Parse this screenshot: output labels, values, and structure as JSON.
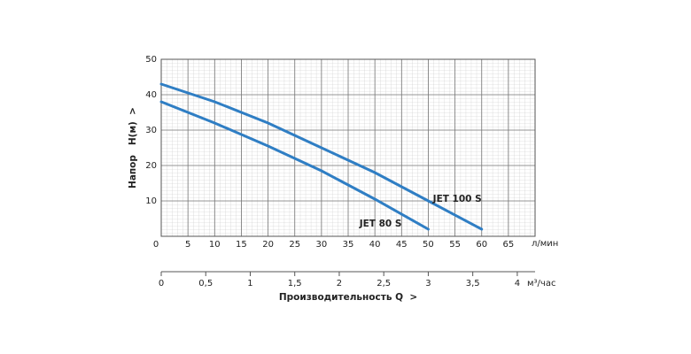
{
  "chart_data": {
    "type": "line",
    "y_label": "Напор   H(м)  >",
    "x_unit": "л/мин",
    "x2_unit": "м³/час",
    "x2_label": "Производительность Q  >",
    "xlim": [
      0,
      70
    ],
    "xticks": [
      0,
      5,
      10,
      15,
      20,
      25,
      30,
      35,
      40,
      45,
      50,
      55,
      60,
      65
    ],
    "ylim": [
      0,
      50
    ],
    "yticks": [
      10,
      20,
      30,
      40,
      50
    ],
    "x2lim": [
      0,
      4.2
    ],
    "x2ticks": [
      0,
      {
        "value": 0.5,
        "label": "0,5"
      },
      1,
      {
        "value": 1.5,
        "label": "1,5"
      },
      2,
      {
        "value": 2.5,
        "label": "2,5"
      },
      3,
      {
        "value": 3.5,
        "label": "3,5"
      },
      4
    ],
    "grid": true,
    "series": [
      {
        "name": "JET 100 S",
        "color": "#2f7ec4",
        "x": [
          0,
          10,
          20,
          30,
          40,
          50,
          60
        ],
        "values": [
          43,
          38,
          32,
          25,
          18,
          10,
          2
        ]
      },
      {
        "name": "JET 80 S",
        "color": "#2f7ec4",
        "x": [
          0,
          10,
          20,
          30,
          40,
          50
        ],
        "values": [
          38,
          32,
          25.5,
          18.5,
          10.5,
          2
        ]
      }
    ]
  }
}
